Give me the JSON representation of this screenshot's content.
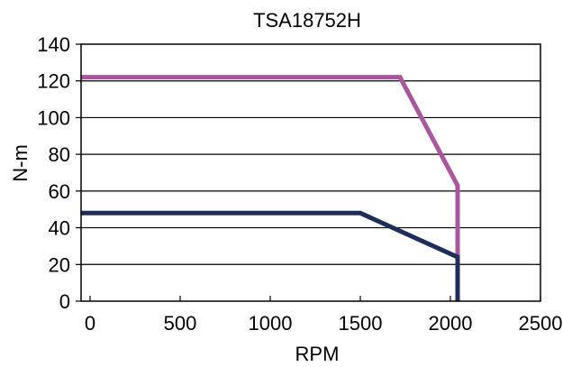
{
  "chart_data": {
    "type": "line",
    "title": "TSA18752H",
    "xlabel": "RPM",
    "ylabel": "N-m",
    "xlim": [
      -50,
      2500
    ],
    "ylim": [
      0,
      140
    ],
    "x_ticks": [
      0,
      500,
      1000,
      1500,
      2000,
      2500
    ],
    "y_ticks": [
      0,
      20,
      40,
      60,
      80,
      100,
      120,
      140
    ],
    "x_tick_labels": [
      "0",
      "500",
      "1000",
      "1500",
      "2000",
      "2500"
    ],
    "y_tick_labels": [
      "0",
      "20",
      "40",
      "60",
      "80",
      "100",
      "120",
      "140"
    ],
    "grid": "horizontal",
    "legend": "none",
    "series": [
      {
        "color": "#a9569f",
        "points": [
          [
            -50,
            122
          ],
          [
            1720,
            122
          ],
          [
            2040,
            63
          ],
          [
            2040,
            0
          ]
        ]
      },
      {
        "color": "#1f2d5c",
        "points": [
          [
            -50,
            48
          ],
          [
            1500,
            48
          ],
          [
            2040,
            24
          ],
          [
            2040,
            0
          ]
        ]
      }
    ]
  }
}
